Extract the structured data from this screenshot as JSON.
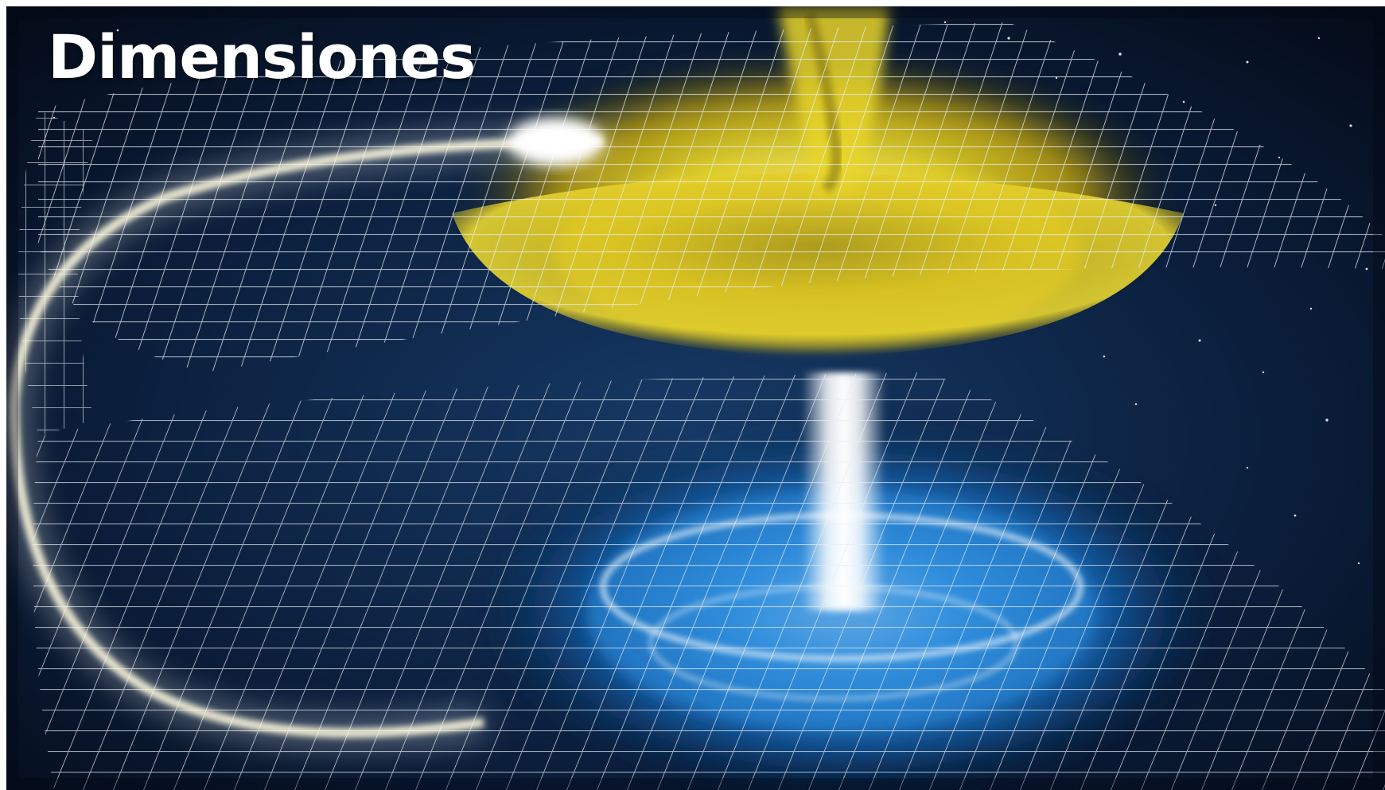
{
  "slide": {
    "title": "Dimensiones"
  },
  "illustration": {
    "subject": "curved-spacetime-grid-wormhole",
    "colors": {
      "space": "#06101f",
      "upper_glow": "#f2e12a",
      "lower_glow": "#1f8fe6",
      "grid": "#e8eef5"
    }
  }
}
